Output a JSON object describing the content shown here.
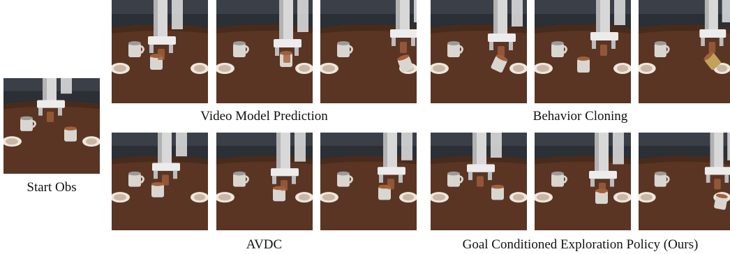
{
  "captions": {
    "start_obs": "Start Obs",
    "video_model_prediction": "Video Model Prediction",
    "behavior_cloning": "Behavior Cloning",
    "avdc": "AVDC",
    "goal_conditioned": "Goal Conditioned Exploration Policy (Ours)"
  },
  "colors": {
    "wall": "#2b2f36",
    "table": "#5a3524",
    "table_dark": "#3d2418",
    "robot": "#d8d8d8",
    "robot_shadow": "#8c8c8c",
    "mug": "#d9d6d0",
    "cup": "#a0603c",
    "plate": "#efe6dc"
  }
}
